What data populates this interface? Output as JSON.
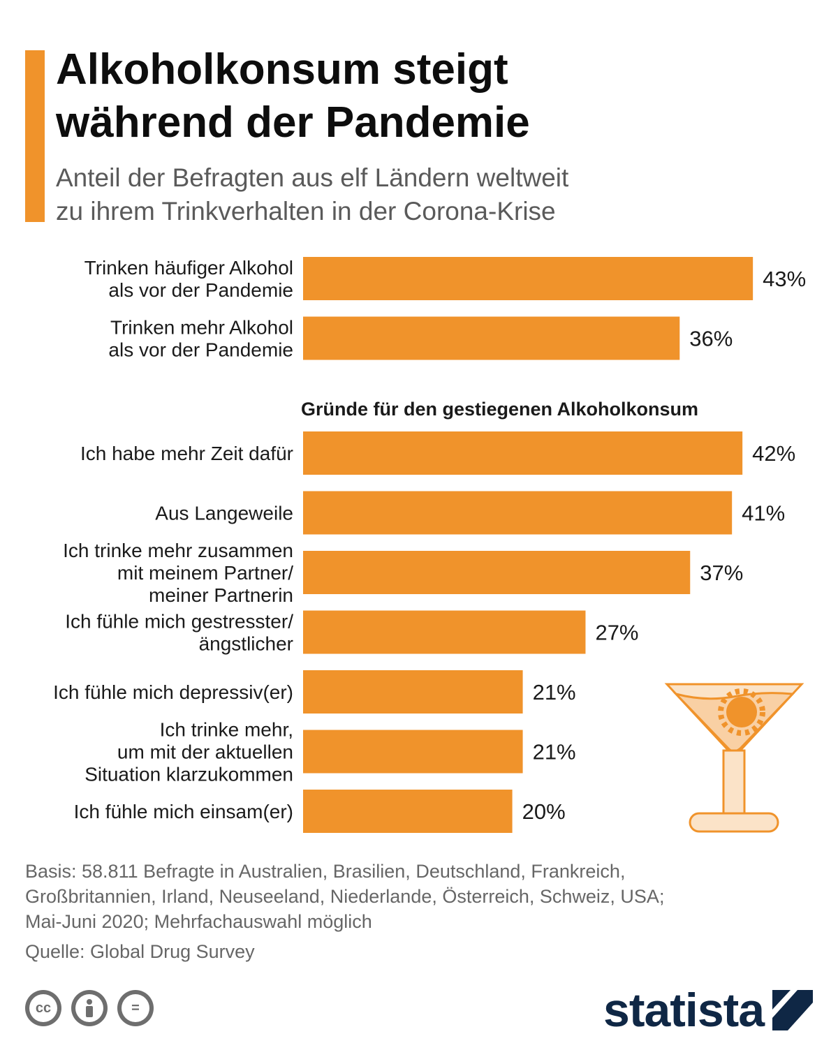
{
  "header": {
    "title": "Alkoholkonsum steigt\nwährend der Pandemie",
    "subtitle": "Anteil der Befragten aus elf Ländern weltweit\nzu ihrem Trinkverhalten in der Corona-Krise"
  },
  "chart_data": {
    "type": "bar",
    "orientation": "horizontal",
    "bar_color": "#f0932b",
    "unit": "%",
    "groups": [
      {
        "heading": "",
        "categories": [
          "Trinken häufiger Alkohol\nals vor der Pandemie",
          "Trinken mehr Alkohol\nals vor der Pandemie"
        ],
        "values": [
          43,
          36
        ],
        "labels": [
          "43%",
          "36%"
        ]
      },
      {
        "heading": "Gründe für den gestiegenen Alkoholkonsum",
        "categories": [
          "Ich habe mehr Zeit dafür",
          "Aus Langeweile",
          "Ich trinke mehr zusammen\nmit meinem Partner/\nmeiner Partnerin",
          "Ich fühle mich gestresster/\nängstlicher",
          "Ich fühle mich depressiv(er)",
          "Ich trinke mehr,\num mit der aktuellen\nSituation klarzukommen",
          "Ich fühle mich einsam(er)"
        ],
        "values": [
          42,
          41,
          37,
          27,
          21,
          21,
          20
        ],
        "labels": [
          "42%",
          "41%",
          "37%",
          "27%",
          "21%",
          "21%",
          "20%"
        ]
      }
    ],
    "illustration": "cocktail-glass-with-virus-icon"
  },
  "footer": {
    "basis": "Basis: 58.811 Befragte in Australien, Brasilien, Deutschland, Frankreich,\nGroßbritannien, Irland, Neuseeland, Niederlande, Österreich, Schweiz, USA;\nMai-Juni 2020; Mehrfachauswahl möglich",
    "source": "Quelle: Global Drug Survey",
    "license_icons": [
      "cc-icon",
      "by-icon",
      "nd-icon"
    ],
    "license_glyphs": [
      "cc",
      "",
      "="
    ],
    "brand": "statista",
    "brand_color": "#0f2745"
  }
}
